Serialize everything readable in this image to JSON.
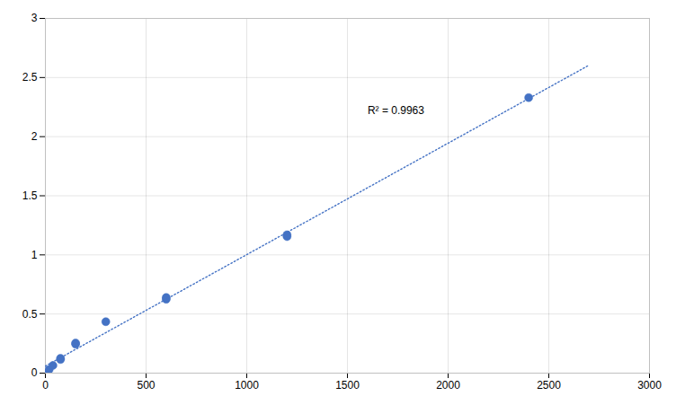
{
  "chart_data": {
    "type": "scatter",
    "series": [
      {
        "type": "scatter",
        "marker": "circle",
        "color": "#4472c4",
        "x": [
          0,
          18.75,
          37.5,
          75,
          75,
          150,
          150,
          300,
          600,
          600,
          1200,
          1200,
          2400
        ],
        "values": [
          0.0,
          0.03,
          0.065,
          0.115,
          0.125,
          0.245,
          0.255,
          0.435,
          0.625,
          0.64,
          1.155,
          1.17,
          2.33
        ]
      },
      {
        "type": "line",
        "line_style": "dotted",
        "color": "#4472c4",
        "x": [
          0,
          2700
        ],
        "values": [
          0.05959,
          2.60452
        ]
      }
    ],
    "annotations": [
      {
        "text": "R² = 0.9963",
        "x": 1600,
        "y": 2.22
      }
    ],
    "xlim": [
      0,
      3000
    ],
    "ylim": [
      0,
      3
    ],
    "xticks": [
      0,
      500,
      1000,
      1500,
      2000,
      2500,
      3000
    ],
    "yticks": [
      0,
      0.5,
      1,
      1.5,
      2,
      2.5,
      3
    ],
    "grid": true
  }
}
